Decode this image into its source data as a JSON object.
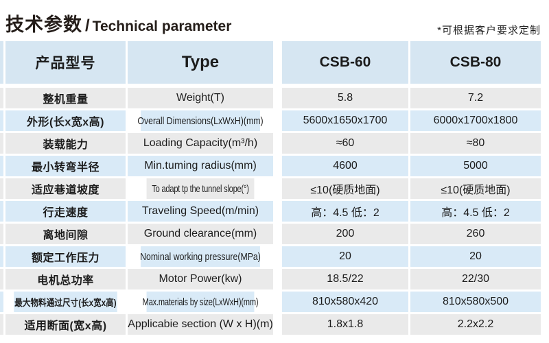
{
  "title": {
    "cn": "技术参数",
    "sep": "/",
    "en": "Technical parameter"
  },
  "note": "*可根据客户要求定制",
  "colors": {
    "header_blue": "#d6e6f2",
    "row_blue": "#d9eaf7",
    "row_gray": "#eaeaea",
    "text": "#1c1c1c"
  },
  "table": {
    "header": {
      "col1": "产品型号",
      "col2": "Type",
      "col3": "CSB-60",
      "col4": "CSB-80"
    },
    "rows": [
      {
        "cn": "整机重量",
        "en": "Weight(T)",
        "csb60": "5.8",
        "csb80": "7.2"
      },
      {
        "cn": "外形(长x宽x高)",
        "en": "Overall Dimensions(LxWxH)(mm)",
        "csb60": "5600x1650x1700",
        "csb80": "6000x1700x1800"
      },
      {
        "cn": "装载能力",
        "en": "Loading Capacity(m³/h)",
        "csb60": "≈60",
        "csb80": "≈80"
      },
      {
        "cn": "最小转弯半径",
        "en": "Min.tuming radius(mm)",
        "csb60": "4600",
        "csb80": "5000"
      },
      {
        "cn": "适应巷道坡度",
        "en": "To adapt tp the tunnel slope(°)",
        "csb60": "≤10(硬质地面)",
        "csb80": "≤10(硬质地面)"
      },
      {
        "cn": "行走速度",
        "en": "Traveling Speed(m/min)",
        "csb60": "高：4.5 低：2",
        "csb80": "高：4.5 低：2"
      },
      {
        "cn": "离地间隙",
        "en": "Ground clearance(mm)",
        "csb60": "200",
        "csb80": "260"
      },
      {
        "cn": "额定工作压力",
        "en": "Nominal working pressure(MPa)",
        "csb60": "20",
        "csb80": "20"
      },
      {
        "cn": "电机总功率",
        "en": "Motor Power(kw)",
        "csb60": "18.5/22",
        "csb80": "22/30"
      },
      {
        "cn": "最大物料通过尺寸(长x宽x高)",
        "en": "Max.materials by size(LxWxH)(mm)",
        "csb60": "810x580x420",
        "csb80": "810x580x500"
      },
      {
        "cn": "适用断面(宽x高)",
        "en": "Applicabie section (W x H)(m)",
        "csb60": "1.8x1.8",
        "csb80": "2.2x2.2"
      }
    ]
  }
}
